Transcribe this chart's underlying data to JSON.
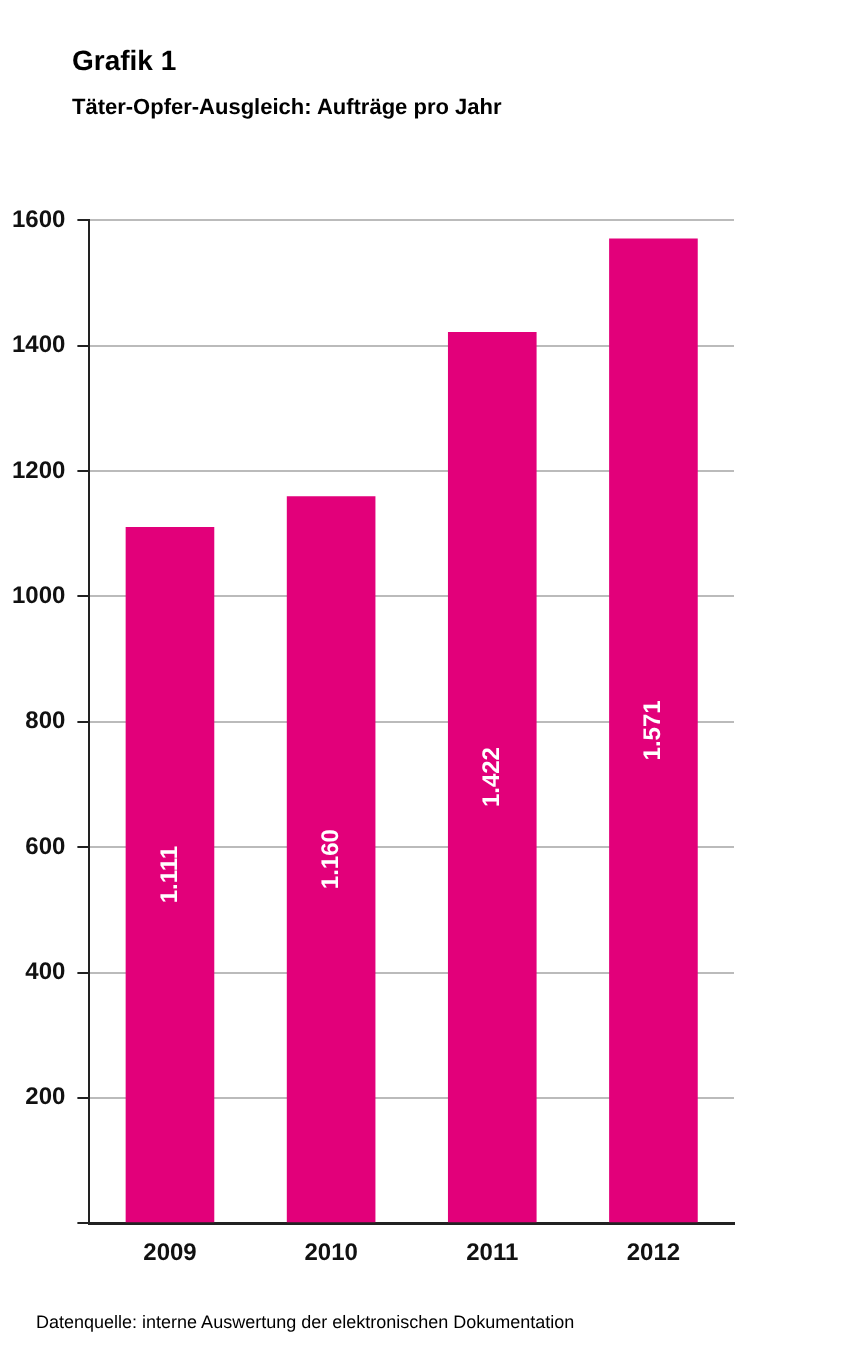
{
  "chart_data": {
    "type": "bar",
    "title": "Grafik 1",
    "subtitle": "Täter-Opfer-Ausgleich: Aufträge pro Jahr",
    "categories": [
      "2009",
      "2010",
      "2011",
      "2012"
    ],
    "series": [
      {
        "color": "#e2007a",
        "values": [
          1111,
          1160,
          1422,
          1571
        ],
        "value_labels": [
          "1.111",
          "1.160",
          "1.422",
          "1.571"
        ]
      }
    ],
    "ylim": [
      0,
      1600
    ],
    "yticks": [
      {
        "value": 0,
        "label": null
      },
      200,
      400,
      600,
      800,
      1000,
      1200,
      1400,
      1600
    ],
    "grid": "y",
    "legend": false,
    "annotations": [
      "Datenquelle: interne Auswertung der elektronischen Dokumentation"
    ]
  }
}
